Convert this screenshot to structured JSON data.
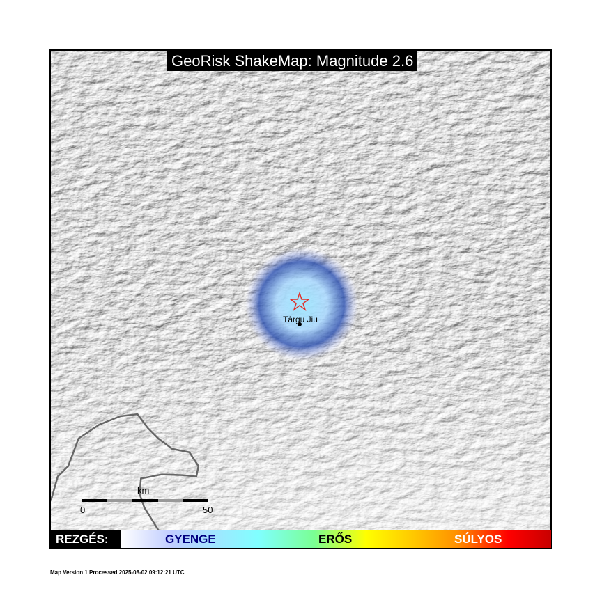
{
  "title": "GeoRisk ShakeMap: Magnitude 2.6",
  "city": {
    "name": "Târgu Jiu"
  },
  "epicenter": {
    "icon": "star-icon",
    "color": "#e0302a"
  },
  "scale_bar": {
    "unit": "km",
    "min_label": "0",
    "max_label": "50"
  },
  "legend": {
    "label": "REZGÉS:",
    "levels": [
      {
        "text": "GYENGE",
        "color": "#000080"
      },
      {
        "text": "ERŐS",
        "color": "#000000"
      },
      {
        "text": "SÚLYOS",
        "color": "#ffffff"
      }
    ]
  },
  "footer": "Map Version 1 Processed 2025-08-02 09:12:21 UTC"
}
